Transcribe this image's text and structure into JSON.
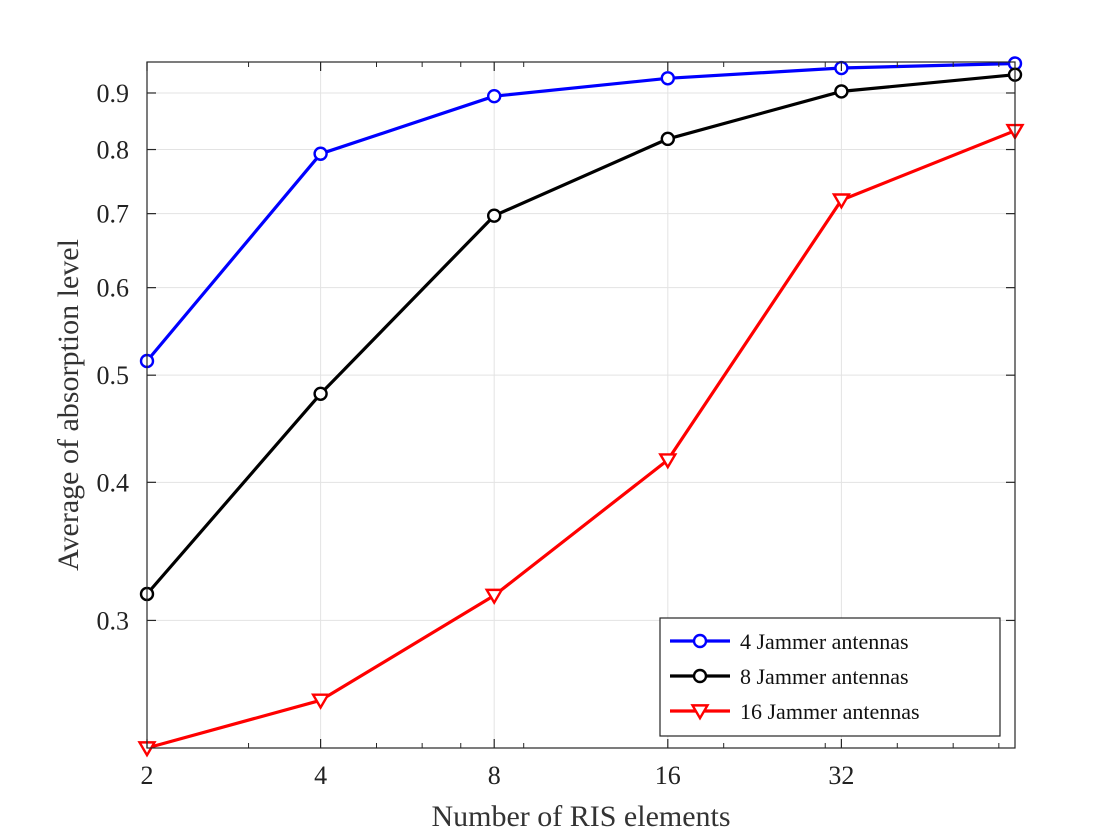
{
  "chart_data": {
    "type": "line",
    "title": "",
    "xlabel": "Number of RIS elements",
    "ylabel": "Average of absorption level",
    "x": [
      2,
      4,
      8,
      16,
      32,
      64
    ],
    "x_ticks": [
      "2",
      "4",
      "8",
      "16",
      "32"
    ],
    "y_ticks": [
      "0.3",
      "0.4",
      "0.5",
      "0.6",
      "0.7",
      "0.8",
      "0.9"
    ],
    "x_scale": "log",
    "y_scale": "log",
    "xlim": [
      2,
      64
    ],
    "ylim": [
      0.23,
      0.96
    ],
    "grid": true,
    "legend_position": "bottom-right",
    "series": [
      {
        "name": "4 Jammer antennas",
        "color": "#0000ff",
        "marker": "circle",
        "values": [
          0.515,
          0.793,
          0.894,
          0.928,
          0.948,
          0.957
        ]
      },
      {
        "name": "8 Jammer antennas",
        "color": "#000000",
        "marker": "circle",
        "values": [
          0.317,
          0.481,
          0.697,
          0.818,
          0.903,
          0.935
        ]
      },
      {
        "name": "16 Jammer antennas",
        "color": "#ff0000",
        "marker": "triangle-down",
        "values": [
          0.23,
          0.254,
          0.316,
          0.419,
          0.72,
          0.832
        ]
      }
    ]
  }
}
